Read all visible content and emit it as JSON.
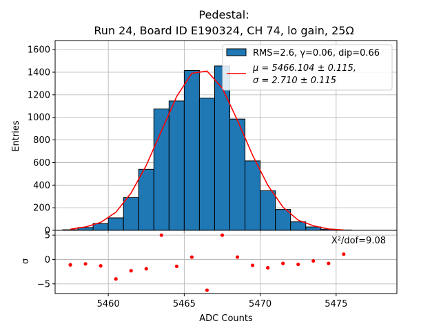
{
  "chart_data": [
    {
      "type": "bar",
      "title_line1": "Pedestal:",
      "title_line2": "Run 24, Board ID E190324, CH 74, lo gain, 25Ω",
      "ylabel": "Entries",
      "xlim": [
        5456.5,
        5479.0
      ],
      "ylim": [
        0,
        1680
      ],
      "yticks": [
        0,
        200,
        400,
        600,
        800,
        1000,
        1200,
        1400,
        1600
      ],
      "grid": true,
      "legend_position": "top-right",
      "bar_color": "#1f77b4",
      "fit_color": "#ff0000",
      "bins": {
        "x_low": [
          5457,
          5458,
          5459,
          5460,
          5461,
          5462,
          5463,
          5464,
          5465,
          5466,
          5467,
          5468,
          5469,
          5470,
          5471,
          5472,
          5473,
          5474,
          5475
        ],
        "width": 1,
        "values": [
          5,
          25,
          60,
          110,
          290,
          540,
          1075,
          1145,
          1415,
          1170,
          1455,
          985,
          615,
          350,
          185,
          75,
          30,
          10,
          3
        ]
      },
      "fit_curve": {
        "x": [
          5457.5,
          5458.5,
          5459.5,
          5460.5,
          5461.5,
          5462.5,
          5463.5,
          5464.5,
          5465.5,
          5466.5,
          5467.5,
          5468.5,
          5469.5,
          5470.5,
          5471.5,
          5472.5,
          5473.5,
          5474.5,
          5475.5
        ],
        "y": [
          10,
          30,
          70,
          160,
          330,
          575,
          880,
          1185,
          1390,
          1410,
          1260,
          975,
          665,
          400,
          205,
          90,
          40,
          12,
          3
        ]
      },
      "legend": {
        "hist_label": "RMS=2.6, γ=0.06, dip=0.66",
        "fit_label_line1": "μ = 5466.104 ± 0.115,",
        "fit_label_line2": "σ = 2.710 ± 0.115"
      }
    },
    {
      "type": "scatter",
      "xlabel": "ADC Counts",
      "ylabel": "σ",
      "xlim": [
        5456.5,
        5479.0
      ],
      "ylim": [
        -7,
        6
      ],
      "xticks": [
        5460,
        5465,
        5470,
        5475
      ],
      "yticks": [
        -5,
        0,
        5
      ],
      "grid": true,
      "point_color": "#ff0000",
      "annotation": "X²/dof=9.08",
      "points": {
        "x": [
          5457.5,
          5458.5,
          5459.5,
          5460.5,
          5461.5,
          5462.5,
          5463.5,
          5464.5,
          5465.5,
          5466.5,
          5467.5,
          5468.5,
          5469.5,
          5470.5,
          5471.5,
          5472.5,
          5473.5,
          5474.5,
          5475.5
        ],
        "y": [
          -1.1,
          -0.9,
          -1.3,
          -4.0,
          -2.3,
          -1.9,
          5.0,
          -1.4,
          0.5,
          -6.3,
          5.0,
          0.5,
          -1.2,
          -1.7,
          -0.8,
          -1.0,
          -0.3,
          -0.8,
          1.1
        ]
      }
    }
  ]
}
